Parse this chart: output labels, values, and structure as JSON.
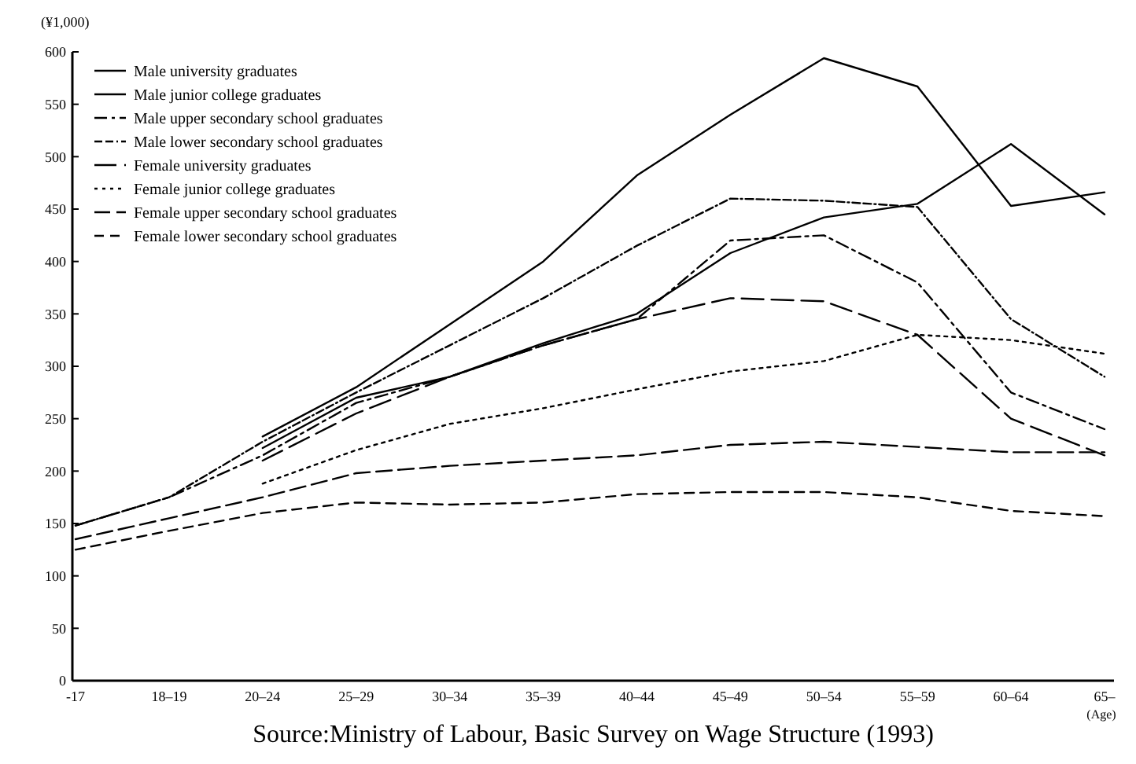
{
  "chart_data": {
    "type": "line",
    "ylabel": "(¥1,000)",
    "xlabel": "(Age)",
    "categories": [
      "-17",
      "18–19",
      "20–24",
      "25–29",
      "30–34",
      "35–39",
      "40–44",
      "45–49",
      "50–54",
      "55–59",
      "60–64",
      "65–"
    ],
    "ylim": [
      0,
      600
    ],
    "yticks": [
      0,
      50,
      100,
      150,
      200,
      250,
      300,
      350,
      400,
      450,
      500,
      550,
      600
    ],
    "grid": false,
    "legend": "top left",
    "marker": "none",
    "series": [
      {
        "name": "Male university graduates",
        "color": "#000000",
        "line_style": "solid",
        "values": [
          null,
          null,
          233,
          280,
          340,
          400,
          482,
          540,
          594,
          567,
          453,
          466
        ]
      },
      {
        "name": "Male junior college graduates",
        "color": "#000000",
        "line_style": "solid",
        "values": [
          null,
          null,
          222,
          270,
          290,
          322,
          350,
          408,
          442,
          455,
          512,
          445
        ]
      },
      {
        "name": "Male upper secondary school graduates",
        "color": "#000000",
        "line_style": "dashed",
        "values": [
          148,
          175,
          215,
          265,
          290,
          320,
          345,
          420,
          425,
          380,
          275,
          240
        ]
      },
      {
        "name": "Male lower secondary school graduates",
        "color": "#000000",
        "line_style": "dashed",
        "values": [
          148,
          175,
          228,
          275,
          320,
          365,
          415,
          460,
          458,
          452,
          345,
          290
        ]
      },
      {
        "name": "Female university graduates",
        "color": "#000000",
        "line_style": "dashed",
        "values": [
          null,
          null,
          210,
          255,
          290,
          320,
          345,
          365,
          362,
          330,
          250,
          215
        ]
      },
      {
        "name": "Female junior college graduates",
        "color": "#000000",
        "line_style": "dotted",
        "values": [
          null,
          null,
          188,
          220,
          245,
          260,
          278,
          295,
          305,
          330,
          325,
          312
        ]
      },
      {
        "name": "Female upper secondary school graduates",
        "color": "#000000",
        "line_style": "dashed",
        "values": [
          135,
          155,
          175,
          198,
          205,
          210,
          215,
          225,
          228,
          223,
          218,
          218
        ]
      },
      {
        "name": "Female lower secondary school graduates",
        "color": "#000000",
        "line_style": "dashed",
        "values": [
          125,
          143,
          160,
          170,
          168,
          170,
          178,
          180,
          180,
          175,
          162,
          157
        ]
      }
    ],
    "annotations": [
      "Source:Ministry of Labour, Basic Survey on Wage Structure (1993)"
    ]
  }
}
